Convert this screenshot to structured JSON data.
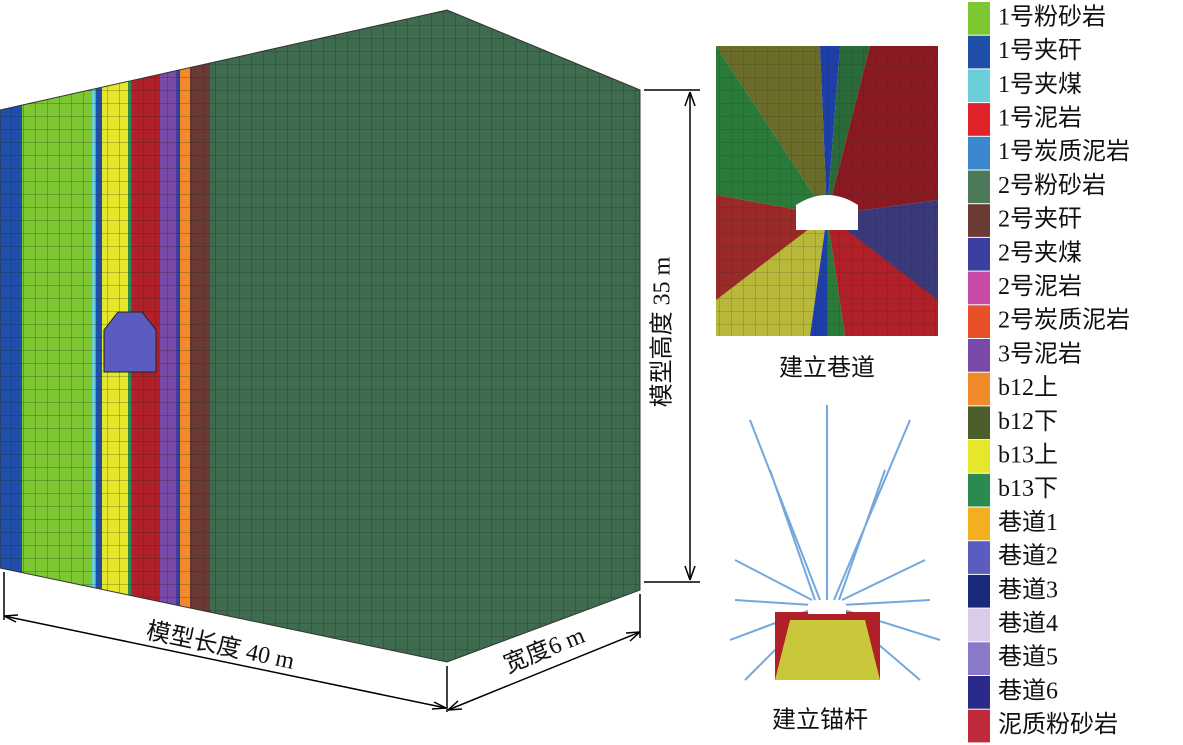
{
  "dimensions": {
    "length": "模型长度 40 m",
    "width": "宽度6 m",
    "height": "模型高度 35 m"
  },
  "captions": {
    "tunnel": "建立巷道",
    "anchor": "建立锚杆"
  },
  "legend": [
    {
      "name": "1号粉砂岩",
      "color": "#7dc832"
    },
    {
      "name": "1号夹矸",
      "color": "#1f4fa8"
    },
    {
      "name": "1号夹煤",
      "color": "#6ccfd8"
    },
    {
      "name": "1号泥岩",
      "color": "#e0222a"
    },
    {
      "name": "1号炭质泥岩",
      "color": "#3b86cc"
    },
    {
      "name": "2号粉砂岩",
      "color": "#4e7a5c"
    },
    {
      "name": "2号夹矸",
      "color": "#6b3a34"
    },
    {
      "name": "2号夹煤",
      "color": "#3a3fa0"
    },
    {
      "name": "2号泥岩",
      "color": "#c64aa6"
    },
    {
      "name": "2号炭质泥岩",
      "color": "#e8502a"
    },
    {
      "name": "3号泥岩",
      "color": "#7a4aa8"
    },
    {
      "name": "b12上",
      "color": "#f08a2a"
    },
    {
      "name": "b12下",
      "color": "#4c5e2a"
    },
    {
      "name": "b13上",
      "color": "#e6e62a"
    },
    {
      "name": "b13下",
      "color": "#2a8a50"
    },
    {
      "name": "巷道1",
      "color": "#f2b020"
    },
    {
      "name": "巷道2",
      "color": "#5a5cc0"
    },
    {
      "name": "巷道3",
      "color": "#1a2a7a"
    },
    {
      "name": "巷道4",
      "color": "#d8cce8"
    },
    {
      "name": "巷道5",
      "color": "#8a78c8"
    },
    {
      "name": "巷道6",
      "color": "#2a2a8a"
    },
    {
      "name": "泥质粉砂岩",
      "color": "#c02a3a"
    }
  ]
}
